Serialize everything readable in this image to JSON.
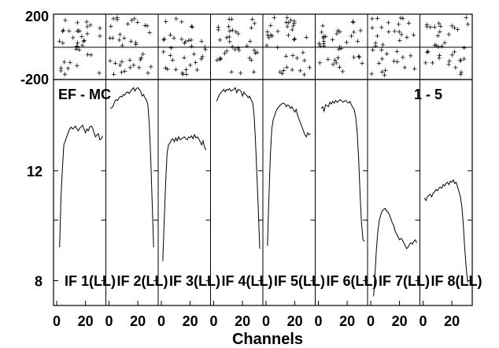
{
  "chart_data": {
    "type": "line",
    "layout": "8 side-by-side panels, shared y axis, phase strip on top",
    "xlabel": "Channels",
    "x_ticks": [
      "0",
      "20"
    ],
    "xlim": [
      0,
      32
    ],
    "phase_axis": {
      "labels": [
        "200",
        "-200"
      ],
      "range": [
        -200,
        200
      ]
    },
    "amp_axis": {
      "scale": "log",
      "ticks": [
        "12",
        "8"
      ],
      "range": [
        7.3,
        16.8
      ]
    },
    "top_left_label": "EF - MC",
    "top_right_label": "1 - 5",
    "panels": [
      {
        "label": "IF 1(LL)",
        "x_start": 2,
        "values": [
          9.05,
          10.9,
          12.1,
          13.2,
          13.4,
          13.6,
          13.8,
          14.0,
          14.1,
          14.0,
          14.05,
          14.15,
          14.0,
          13.9,
          14.05,
          14.1,
          14.2,
          14.0,
          13.8,
          14.0,
          13.9,
          14.1,
          14.15,
          14.05,
          13.8,
          13.6,
          13.7,
          13.75,
          13.45,
          13.5,
          13.65
        ]
      },
      {
        "label": "IF 2(LL)",
        "x_start": 1,
        "values": [
          15.1,
          15.15,
          15.25,
          15.5,
          15.6,
          15.55,
          15.7,
          15.8,
          15.75,
          15.9,
          15.85,
          16.0,
          16.05,
          15.95,
          16.1,
          16.2,
          16.3,
          16.1,
          16.25,
          16.3,
          16.2,
          16.1,
          15.8,
          15.9,
          15.7,
          15.6,
          15.3,
          14.2,
          12.6,
          10.7,
          9.05
        ]
      },
      {
        "label": "IF 3(LL)",
        "x_start": 1,
        "values": [
          8.6,
          10.0,
          11.5,
          12.8,
          13.2,
          13.3,
          13.45,
          13.5,
          13.35,
          13.55,
          13.4,
          13.6,
          13.45,
          13.5,
          13.55,
          13.6,
          13.5,
          13.45,
          13.6,
          13.55,
          13.65,
          13.5,
          13.7,
          13.55,
          13.6,
          13.5,
          13.35,
          13.2,
          13.4,
          13.1,
          12.95
        ]
      },
      {
        "label": "IF 4(LL)",
        "x_start": 2,
        "values": [
          15.5,
          15.7,
          15.9,
          16.0,
          16.1,
          16.2,
          16.05,
          16.2,
          16.15,
          16.25,
          16.1,
          16.15,
          16.2,
          16.3,
          16.0,
          16.2,
          16.15,
          16.1,
          15.8,
          16.05,
          15.9,
          15.85,
          15.7,
          15.8,
          15.6,
          15.45,
          14.8,
          13.5,
          11.9,
          10.4,
          9.0
        ]
      },
      {
        "label": "IF 5(LL)",
        "x_start": 1,
        "values": [
          9.1,
          10.9,
          12.7,
          14.0,
          14.5,
          14.7,
          14.95,
          15.1,
          15.2,
          15.3,
          15.35,
          15.4,
          15.35,
          15.2,
          15.3,
          15.25,
          15.1,
          15.2,
          15.05,
          14.9,
          15.05,
          14.7,
          14.5,
          14.3,
          14.1,
          13.9,
          13.7,
          13.6,
          13.8,
          13.7,
          13.75
        ]
      },
      {
        "label": "IF 6(LL)",
        "x_start": 2,
        "values": [
          15.1,
          15.2,
          14.95,
          15.3,
          15.25,
          15.2,
          15.45,
          15.35,
          15.5,
          15.4,
          15.55,
          15.45,
          15.5,
          15.6,
          15.55,
          15.45,
          15.5,
          15.55,
          15.45,
          15.4,
          15.5,
          15.3,
          15.15,
          15.0,
          14.6,
          13.8,
          12.5,
          11.0,
          9.9,
          9.3,
          9.25
        ]
      },
      {
        "label": "IF 7(LL)",
        "x_start": 2,
        "values": [
          7.55,
          8.2,
          9.0,
          9.6,
          10.0,
          10.2,
          10.35,
          10.4,
          10.45,
          10.35,
          10.3,
          10.2,
          10.05,
          9.9,
          9.8,
          9.6,
          9.5,
          9.4,
          9.3,
          9.35,
          9.3,
          9.2,
          9.1,
          9.0,
          9.05,
          9.15,
          9.2,
          9.15,
          9.25,
          9.3,
          9.2
        ]
      },
      {
        "label": "IF 8(LL)",
        "x_start": 1,
        "values": [
          10.85,
          10.75,
          10.9,
          10.95,
          11.0,
          10.9,
          11.05,
          11.1,
          11.2,
          11.15,
          11.25,
          11.3,
          11.25,
          11.4,
          11.35,
          11.45,
          11.5,
          11.4,
          11.55,
          11.5,
          11.6,
          11.45,
          11.5,
          11.3,
          11.1,
          10.9,
          10.5,
          9.8,
          9.0,
          8.4,
          7.95
        ]
      }
    ],
    "grid": false,
    "phase_marker": "+"
  }
}
